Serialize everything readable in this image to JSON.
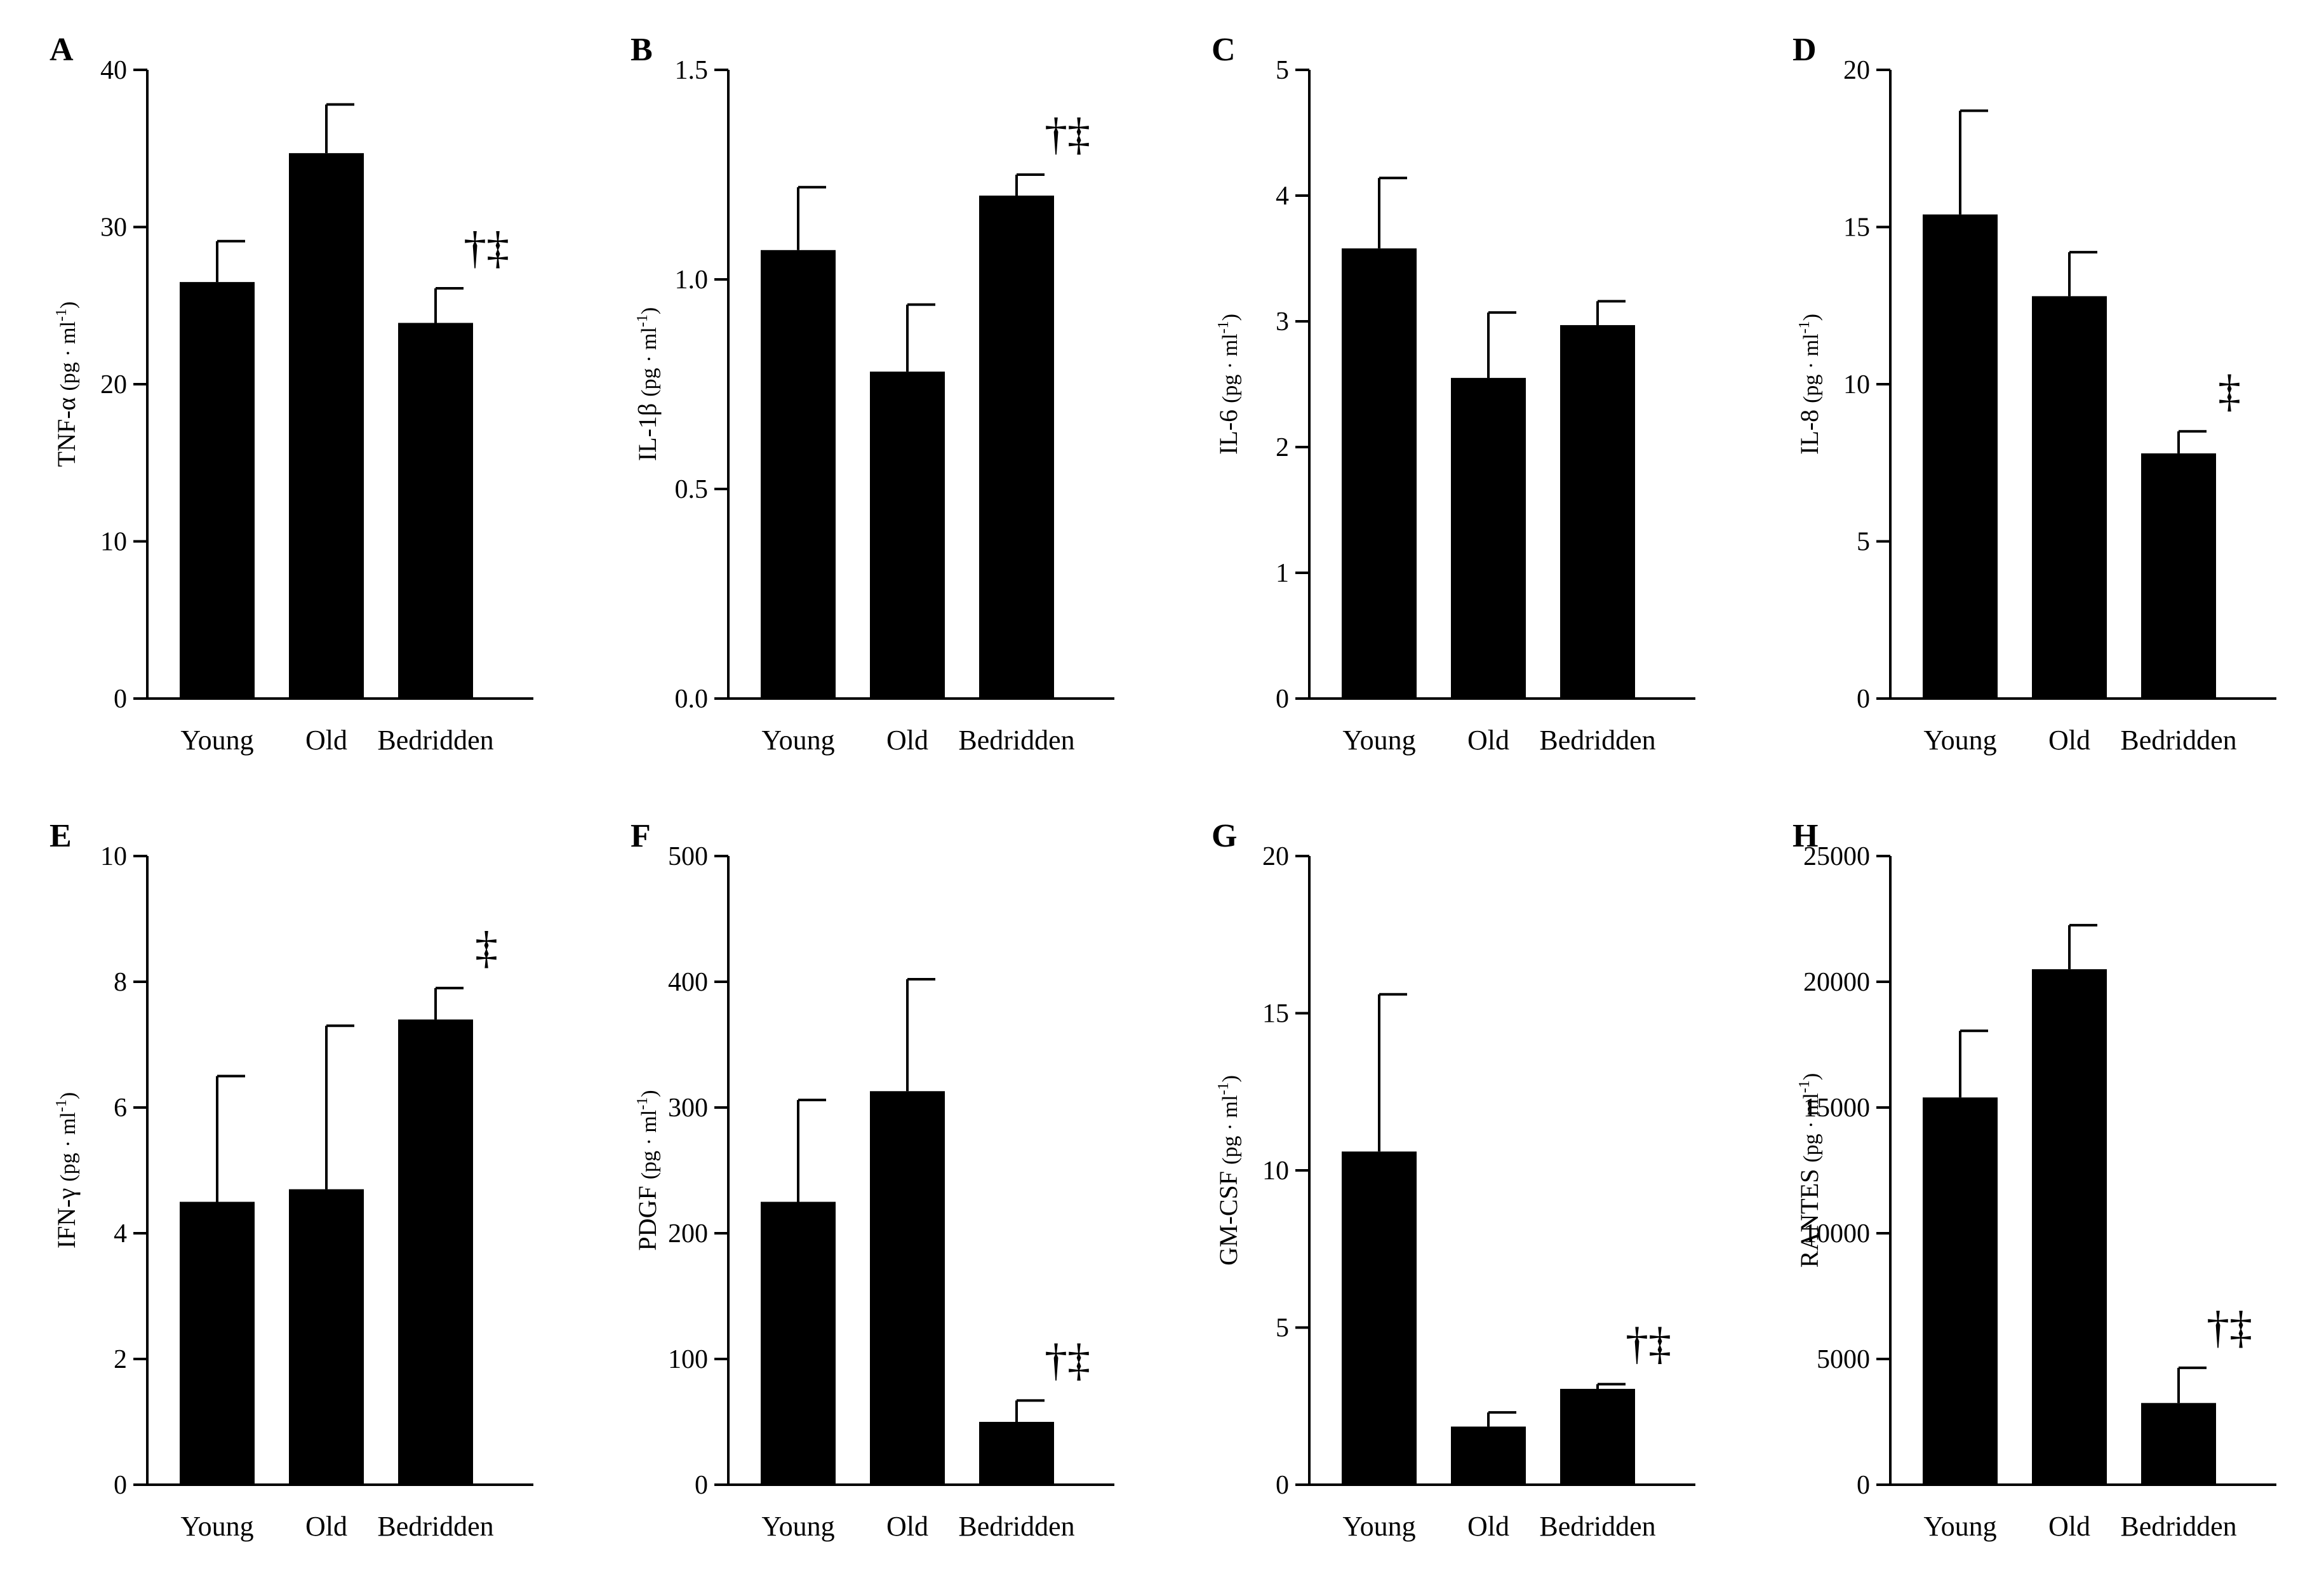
{
  "figure": {
    "colors": {
      "bar": "#000000",
      "axis": "#000000",
      "background": "#ffffff"
    },
    "legend_symbols": [
      "†",
      "‡"
    ]
  },
  "chart_data": [
    {
      "panel": "A",
      "type": "bar",
      "title": "",
      "ylabel_base": "TNF-α",
      "ylabel_unit": "(pg · ml",
      "ylabel_sup": "-1",
      "ylabel_close": ")",
      "xlabel": "",
      "categories": [
        "Young",
        "Old",
        "Bedridden"
      ],
      "values": [
        26.5,
        34.7,
        23.9
      ],
      "errors": [
        2.6,
        3.1,
        2.2
      ],
      "annotations": [
        "",
        "",
        "†‡"
      ],
      "ylim": [
        0,
        40
      ],
      "yticks": [
        0,
        10,
        20,
        30,
        40
      ],
      "ytick_labels": [
        "0",
        "10",
        "20",
        "30",
        "40"
      ]
    },
    {
      "panel": "B",
      "type": "bar",
      "title": "",
      "ylabel_base": "IL-1β",
      "ylabel_unit": "(pg · ml",
      "ylabel_sup": "-1",
      "ylabel_close": ")",
      "xlabel": "",
      "categories": [
        "Young",
        "Old",
        "Bedridden"
      ],
      "values": [
        1.07,
        0.78,
        1.2
      ],
      "errors": [
        0.15,
        0.16,
        0.05
      ],
      "annotations": [
        "",
        "",
        "†‡"
      ],
      "ylim": [
        0,
        1.5
      ],
      "yticks": [
        0,
        0.5,
        1.0,
        1.5
      ],
      "ytick_labels": [
        "0.0",
        "0.5",
        "1.0",
        "1.5"
      ]
    },
    {
      "panel": "C",
      "type": "bar",
      "title": "",
      "ylabel_base": "IL-6",
      "ylabel_unit": "(pg · ml",
      "ylabel_sup": "-1",
      "ylabel_close": ")",
      "xlabel": "",
      "categories": [
        "Young",
        "Old",
        "Bedridden"
      ],
      "values": [
        3.58,
        2.55,
        2.97
      ],
      "errors": [
        0.56,
        0.52,
        0.19
      ],
      "annotations": [
        "",
        "",
        ""
      ],
      "ylim": [
        0,
        5
      ],
      "yticks": [
        0,
        1,
        2,
        3,
        4,
        5
      ],
      "ytick_labels": [
        "0",
        "1",
        "2",
        "3",
        "4",
        "5"
      ]
    },
    {
      "panel": "D",
      "type": "bar",
      "title": "",
      "ylabel_base": "IL-8",
      "ylabel_unit": "(pg · ml",
      "ylabel_sup": "-1",
      "ylabel_close": ")",
      "xlabel": "",
      "categories": [
        "Young",
        "Old",
        "Bedridden"
      ],
      "values": [
        15.4,
        12.8,
        7.8
      ],
      "errors": [
        3.3,
        1.4,
        0.7
      ],
      "annotations": [
        "",
        "",
        "‡"
      ],
      "ylim": [
        0,
        20
      ],
      "yticks": [
        0,
        5,
        10,
        15,
        20
      ],
      "ytick_labels": [
        "0",
        "5",
        "10",
        "15",
        "20"
      ]
    },
    {
      "panel": "E",
      "type": "bar",
      "title": "",
      "ylabel_base": "IFN-γ",
      "ylabel_unit": "(pg · ml",
      "ylabel_sup": "-1",
      "ylabel_close": ")",
      "xlabel": "",
      "categories": [
        "Young",
        "Old",
        "Bedridden"
      ],
      "values": [
        4.5,
        4.7,
        7.4
      ],
      "errors": [
        2.0,
        2.6,
        0.5
      ],
      "annotations": [
        "",
        "",
        "‡"
      ],
      "ylim": [
        0,
        10
      ],
      "yticks": [
        0,
        2,
        4,
        6,
        8,
        10
      ],
      "ytick_labels": [
        "0",
        "2",
        "4",
        "6",
        "8",
        "10"
      ]
    },
    {
      "panel": "F",
      "type": "bar",
      "title": "",
      "ylabel_base": "PDGF",
      "ylabel_unit": "(pg · ml",
      "ylabel_sup": "-1",
      "ylabel_close": ")",
      "xlabel": "",
      "categories": [
        "Young",
        "Old",
        "Bedridden"
      ],
      "values": [
        225,
        313,
        50
      ],
      "errors": [
        81,
        89,
        17
      ],
      "annotations": [
        "",
        "",
        "†‡"
      ],
      "ylim": [
        0,
        500
      ],
      "yticks": [
        0,
        100,
        200,
        300,
        400,
        500
      ],
      "ytick_labels": [
        "0",
        "100",
        "200",
        "300",
        "400",
        "500"
      ]
    },
    {
      "panel": "G",
      "type": "bar",
      "title": "",
      "ylabel_base": "GM-CSF",
      "ylabel_unit": "(pg · ml",
      "ylabel_sup": "-1",
      "ylabel_close": ")",
      "xlabel": "",
      "categories": [
        "Young",
        "Old",
        "Bedridden"
      ],
      "values": [
        10.6,
        1.85,
        3.05
      ],
      "errors": [
        5.0,
        0.45,
        0.15
      ],
      "annotations": [
        "",
        "",
        "†‡"
      ],
      "ylim": [
        0,
        20
      ],
      "yticks": [
        0,
        5,
        10,
        15,
        20
      ],
      "ytick_labels": [
        "0",
        "5",
        "10",
        "15",
        "20"
      ]
    },
    {
      "panel": "H",
      "type": "bar",
      "title": "",
      "ylabel_base": "RANTES",
      "ylabel_unit": "(pg · ml",
      "ylabel_sup": "-1",
      "ylabel_close": ")",
      "xlabel": "",
      "categories": [
        "Young",
        "Old",
        "Bedridden"
      ],
      "values": [
        15400,
        20500,
        3250
      ],
      "errors": [
        2650,
        1750,
        1400
      ],
      "annotations": [
        "",
        "",
        "†‡"
      ],
      "ylim": [
        0,
        25000
      ],
      "yticks": [
        0,
        5000,
        10000,
        15000,
        20000,
        25000
      ],
      "ytick_labels": [
        "0",
        "5000",
        "10000",
        "15000",
        "20000",
        "25000"
      ]
    }
  ]
}
